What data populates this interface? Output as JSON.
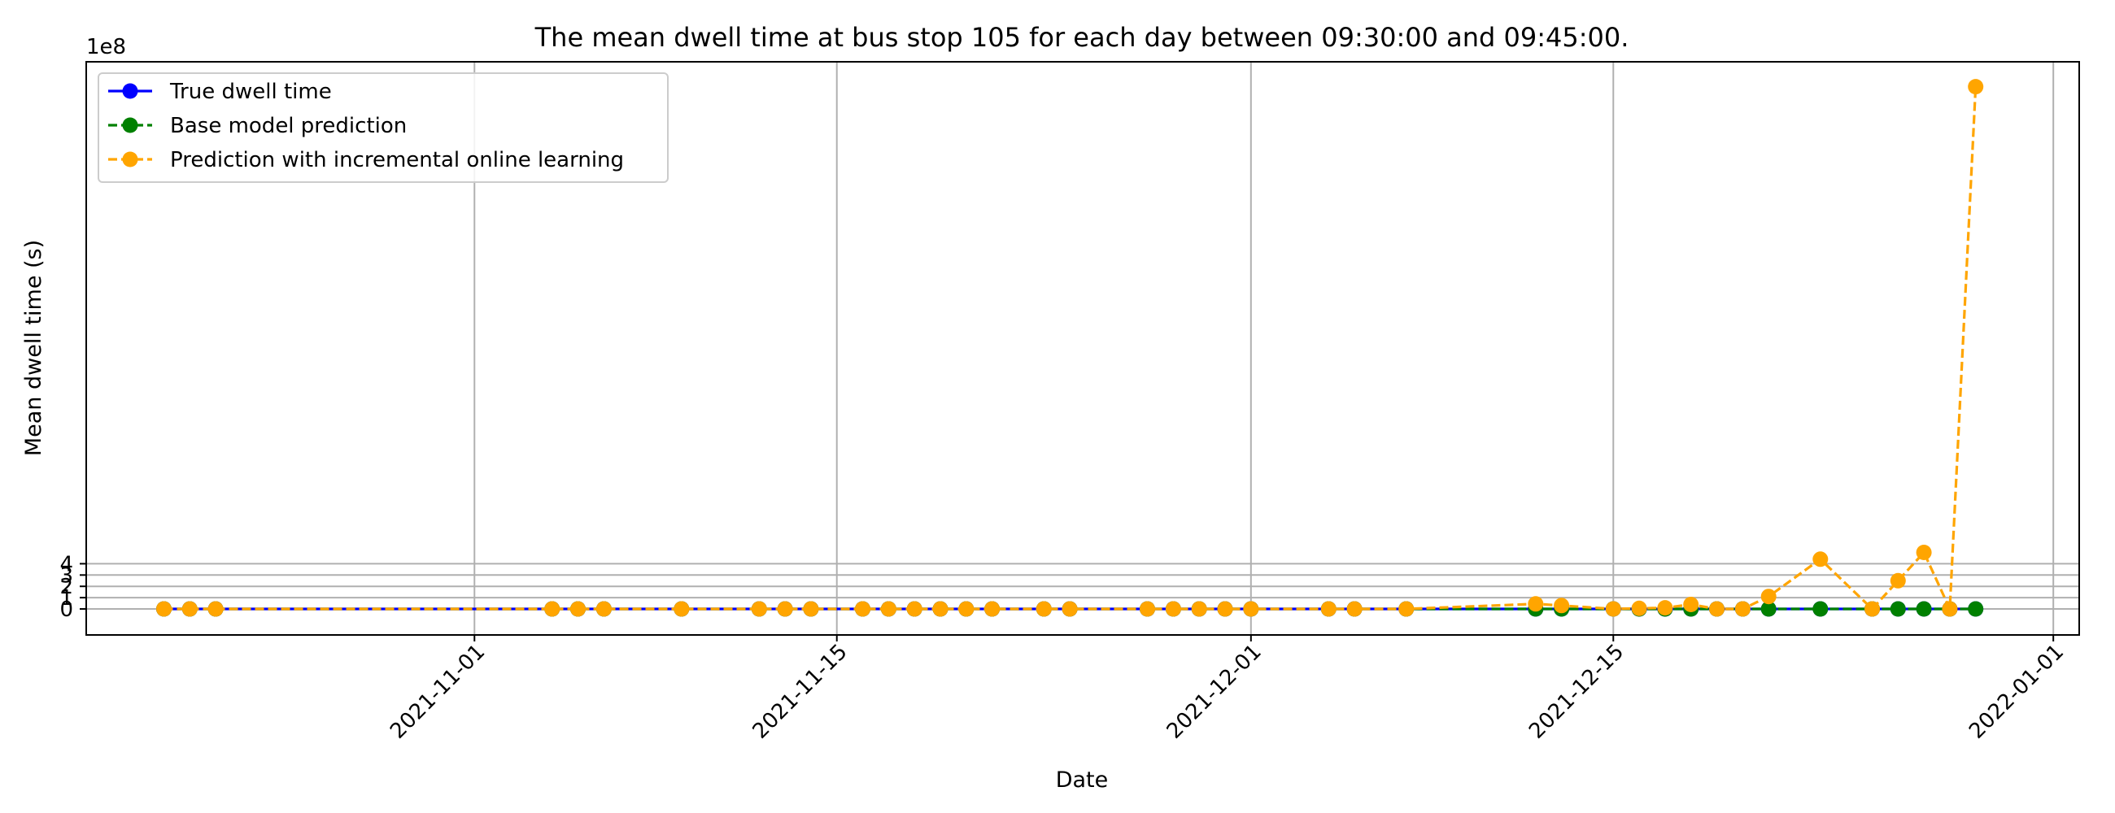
{
  "chart_data": {
    "type": "line",
    "title": "The mean dwell time at bus stop 105 for each day between 09:30:00 and 09:45:00.",
    "xlabel": "Date",
    "ylabel": "Mean dwell time (s)",
    "y_offset_label": "1e8",
    "xlim": [
      "2021-10-17",
      "2022-01-02"
    ],
    "ylim": [
      -2.3,
      48.4
    ],
    "y_scale_multiplier": 100000000,
    "x_ticks": [
      "2021-11-01",
      "2021-11-15",
      "2021-12-01",
      "2021-12-15",
      "2022-01-01"
    ],
    "y_ticks": [
      0,
      1,
      2,
      3,
      4
    ],
    "grid": true,
    "legend_position": "upper-left",
    "x": [
      "2021-10-20",
      "2021-10-21",
      "2021-10-22",
      "2021-11-04",
      "2021-11-05",
      "2021-11-06",
      "2021-11-09",
      "2021-11-12",
      "2021-11-13",
      "2021-11-14",
      "2021-11-16",
      "2021-11-17",
      "2021-11-18",
      "2021-11-19",
      "2021-11-20",
      "2021-11-21",
      "2021-11-23",
      "2021-11-24",
      "2021-11-27",
      "2021-11-28",
      "2021-11-29",
      "2021-11-30",
      "2021-12-01",
      "2021-12-04",
      "2021-12-05",
      "2021-12-07",
      "2021-12-12",
      "2021-12-13",
      "2021-12-15",
      "2021-12-16",
      "2021-12-17",
      "2021-12-18",
      "2021-12-19",
      "2021-12-20",
      "2021-12-21",
      "2021-12-23",
      "2021-12-25",
      "2021-12-26",
      "2021-12-27",
      "2021-12-28",
      "2021-12-29"
    ],
    "series": [
      {
        "name": "True dwell time",
        "color": "#0000ff",
        "linestyle": "solid",
        "values": [
          0,
          0,
          0,
          0,
          0,
          0,
          0,
          0,
          0,
          0,
          0,
          0,
          0,
          0,
          0,
          0,
          0,
          0,
          0,
          0,
          0,
          0,
          0,
          0,
          0,
          0,
          0,
          0,
          0,
          0,
          0,
          0,
          0,
          0,
          0,
          0,
          0,
          0,
          0,
          0,
          0
        ]
      },
      {
        "name": "Base model prediction",
        "color": "#008000",
        "linestyle": "dashed",
        "values": [
          0,
          0,
          0,
          0,
          0,
          0,
          0,
          0,
          0,
          0,
          0,
          0,
          0,
          0,
          0,
          0,
          0,
          0,
          0,
          0,
          0,
          0,
          0,
          0,
          0,
          0,
          0,
          0,
          0,
          0,
          0,
          0,
          0,
          0,
          0,
          0,
          0,
          0,
          0,
          0,
          0
        ]
      },
      {
        "name": "Prediction with incremental online learning",
        "color": "#ffa500",
        "linestyle": "dashed",
        "values": [
          0,
          0,
          0,
          0,
          0,
          0,
          0,
          0,
          0,
          0,
          0,
          0,
          0,
          0,
          0,
          0,
          0,
          0,
          0,
          0,
          0,
          0,
          0,
          0,
          0,
          0,
          0.45,
          0.3,
          0,
          0.05,
          0.1,
          0.4,
          0,
          0,
          1.1,
          4.4,
          0,
          2.5,
          5.0,
          0,
          46.2
        ]
      }
    ]
  }
}
